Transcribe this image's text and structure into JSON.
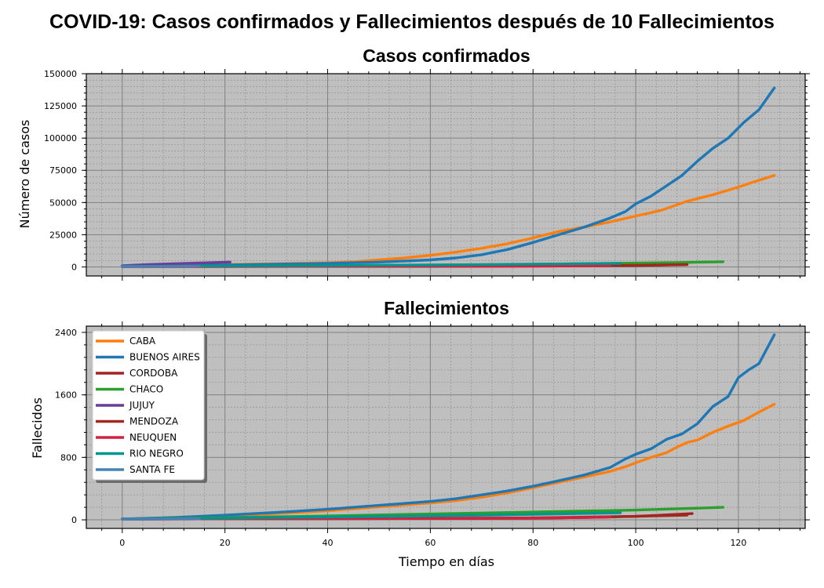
{
  "figure": {
    "title": "COVID-19: Casos confirmados y Fallecimientos después de 10 Fallecimientos"
  },
  "colors": {
    "plot_bg": "#bfbfbf",
    "major_grid": "#808080",
    "minor_grid": "#8c8c8c"
  },
  "chart_data": [
    {
      "type": "line",
      "title": "Casos confirmados",
      "xlabel": "",
      "ylabel": "Número de casos",
      "xlim": [
        -7,
        133
      ],
      "ylim": [
        -7000,
        150000
      ],
      "x_ticks": [
        0,
        20,
        40,
        60,
        80,
        100,
        120
      ],
      "x_tick_labels": [
        "",
        "",
        "",
        "",
        "",
        "",
        ""
      ],
      "y_ticks": [
        0,
        25000,
        50000,
        75000,
        100000,
        125000,
        150000
      ],
      "y_tick_labels": [
        "0",
        "25000",
        "50000",
        "75000",
        "100000",
        "125000",
        "150000"
      ],
      "grid": true,
      "series": [
        {
          "name": "CABA",
          "color": "#ff7f0e",
          "points": [
            [
              0,
              800
            ],
            [
              10,
              1200
            ],
            [
              20,
              1800
            ],
            [
              30,
              2500
            ],
            [
              40,
              3200
            ],
            [
              45,
              4000
            ],
            [
              50,
              5500
            ],
            [
              55,
              7000
            ],
            [
              60,
              9000
            ],
            [
              65,
              11500
            ],
            [
              70,
              14500
            ],
            [
              75,
              18000
            ],
            [
              80,
              22500
            ],
            [
              85,
              27500
            ],
            [
              90,
              31000
            ],
            [
              95,
              35000
            ],
            [
              100,
              39500
            ],
            [
              105,
              44000
            ],
            [
              110,
              51000
            ],
            [
              115,
              56000
            ],
            [
              120,
              62000
            ],
            [
              123,
              66000
            ],
            [
              127,
              71000
            ]
          ]
        },
        {
          "name": "BUENOS AIRES",
          "color": "#1f77b4",
          "points": [
            [
              0,
              800
            ],
            [
              10,
              1100
            ],
            [
              20,
              1500
            ],
            [
              30,
              2100
            ],
            [
              40,
              2800
            ],
            [
              50,
              3800
            ],
            [
              55,
              4600
            ],
            [
              60,
              5500
            ],
            [
              65,
              7000
            ],
            [
              70,
              9500
            ],
            [
              75,
              13500
            ],
            [
              80,
              19000
            ],
            [
              85,
              25000
            ],
            [
              90,
              31000
            ],
            [
              95,
              38000
            ],
            [
              98,
              43000
            ],
            [
              100,
              49000
            ],
            [
              103,
              55000
            ],
            [
              106,
              63000
            ],
            [
              109,
              71000
            ],
            [
              112,
              82000
            ],
            [
              115,
              92000
            ],
            [
              118,
              100000
            ],
            [
              121,
              112000
            ],
            [
              124,
              122000
            ],
            [
              127,
              139000
            ]
          ]
        },
        {
          "name": "CORDOBA",
          "color": "#a02424",
          "points": [
            [
              0,
              400
            ],
            [
              40,
              500
            ],
            [
              80,
              700
            ],
            [
              90,
              900
            ],
            [
              100,
              1200
            ],
            [
              105,
              1500
            ],
            [
              110,
              2200
            ]
          ]
        },
        {
          "name": "CHACO",
          "color": "#2ca02c",
          "points": [
            [
              0,
              500
            ],
            [
              20,
              700
            ],
            [
              40,
              1000
            ],
            [
              60,
              1400
            ],
            [
              80,
              2000
            ],
            [
              100,
              3000
            ],
            [
              110,
              3500
            ],
            [
              117,
              4000
            ]
          ]
        },
        {
          "name": "JUJUY",
          "color": "#6a3d9a",
          "points": [
            [
              0,
              1000
            ],
            [
              5,
              1800
            ],
            [
              10,
              2500
            ],
            [
              15,
              3100
            ],
            [
              21,
              3800
            ]
          ]
        },
        {
          "name": "MENDOZA",
          "color": "#a0281e",
          "points": [
            [
              0,
              300
            ],
            [
              40,
              400
            ],
            [
              80,
              700
            ],
            [
              100,
              1200
            ],
            [
              110,
              1800
            ]
          ]
        },
        {
          "name": "NEUQUEN",
          "color": "#d62040",
          "points": [
            [
              0,
              300
            ],
            [
              40,
              400
            ],
            [
              80,
              600
            ],
            [
              95,
              900
            ]
          ]
        },
        {
          "name": "RIO NEGRO",
          "color": "#00958f",
          "points": [
            [
              0,
              500
            ],
            [
              20,
              800
            ],
            [
              40,
              1100
            ],
            [
              60,
              1500
            ],
            [
              80,
              2200
            ],
            [
              97,
              2800
            ]
          ]
        },
        {
          "name": "SANTA FE",
          "color": "#4682b4",
          "points": [
            [
              0,
              300
            ],
            [
              8,
              500
            ],
            [
              15,
              700
            ]
          ]
        }
      ]
    },
    {
      "type": "line",
      "title": "Fallecimientos",
      "xlabel": "Tiempo en días",
      "ylabel": "Fallecidos",
      "xlim": [
        -7,
        133
      ],
      "ylim": [
        -110,
        2480
      ],
      "x_ticks": [
        0,
        20,
        40,
        60,
        80,
        100,
        120
      ],
      "x_tick_labels": [
        "0",
        "20",
        "40",
        "60",
        "80",
        "100",
        "120"
      ],
      "y_ticks": [
        0,
        800,
        1600,
        2400
      ],
      "y_tick_labels": [
        "0",
        "800",
        "1600",
        "2400"
      ],
      "grid": true,
      "legend": "upper-left",
      "series": [
        {
          "name": "CABA",
          "color": "#ff7f0e",
          "points": [
            [
              0,
              10
            ],
            [
              10,
              25
            ],
            [
              20,
              50
            ],
            [
              30,
              80
            ],
            [
              40,
              115
            ],
            [
              45,
              140
            ],
            [
              50,
              165
            ],
            [
              55,
              190
            ],
            [
              60,
              215
            ],
            [
              65,
              245
            ],
            [
              70,
              290
            ],
            [
              75,
              345
            ],
            [
              80,
              410
            ],
            [
              85,
              480
            ],
            [
              90,
              550
            ],
            [
              95,
              620
            ],
            [
              98,
              680
            ],
            [
              100,
              730
            ],
            [
              103,
              800
            ],
            [
              106,
              860
            ],
            [
              108,
              930
            ],
            [
              110,
              990
            ],
            [
              112,
              1020
            ],
            [
              115,
              1120
            ],
            [
              118,
              1200
            ],
            [
              121,
              1270
            ],
            [
              124,
              1380
            ],
            [
              127,
              1480
            ]
          ]
        },
        {
          "name": "BUENOS AIRES",
          "color": "#1f77b4",
          "points": [
            [
              0,
              10
            ],
            [
              10,
              30
            ],
            [
              20,
              60
            ],
            [
              30,
              95
            ],
            [
              40,
              135
            ],
            [
              45,
              160
            ],
            [
              50,
              185
            ],
            [
              55,
              210
            ],
            [
              60,
              235
            ],
            [
              65,
              270
            ],
            [
              70,
              320
            ],
            [
              75,
              370
            ],
            [
              80,
              430
            ],
            [
              85,
              500
            ],
            [
              90,
              575
            ],
            [
              95,
              670
            ],
            [
              98,
              780
            ],
            [
              100,
              840
            ],
            [
              103,
              910
            ],
            [
              106,
              1030
            ],
            [
              109,
              1100
            ],
            [
              112,
              1230
            ],
            [
              115,
              1450
            ],
            [
              118,
              1580
            ],
            [
              120,
              1820
            ],
            [
              122,
              1920
            ],
            [
              124,
              2000
            ],
            [
              127,
              2370
            ]
          ]
        },
        {
          "name": "CORDOBA",
          "color": "#a02424",
          "points": [
            [
              0,
              10
            ],
            [
              40,
              14
            ],
            [
              80,
              22
            ],
            [
              90,
              30
            ],
            [
              100,
              45
            ],
            [
              105,
              60
            ],
            [
              111,
              80
            ]
          ]
        },
        {
          "name": "CHACO",
          "color": "#2ca02c",
          "points": [
            [
              0,
              10
            ],
            [
              20,
              30
            ],
            [
              40,
              50
            ],
            [
              60,
              75
            ],
            [
              80,
              100
            ],
            [
              100,
              125
            ],
            [
              110,
              145
            ],
            [
              117,
              160
            ]
          ]
        },
        {
          "name": "JUJUY",
          "color": "#6a3d9a",
          "points": [
            [
              0,
              10
            ],
            [
              10,
              12
            ],
            [
              20,
              15
            ]
          ]
        },
        {
          "name": "MENDOZA",
          "color": "#a0281e",
          "points": [
            [
              0,
              10
            ],
            [
              40,
              14
            ],
            [
              80,
              25
            ],
            [
              100,
              45
            ],
            [
              110,
              60
            ]
          ]
        },
        {
          "name": "NEUQUEN",
          "color": "#d62040",
          "points": [
            [
              0,
              10
            ],
            [
              40,
              14
            ],
            [
              80,
              22
            ],
            [
              95,
              35
            ]
          ]
        },
        {
          "name": "RIO NEGRO",
          "color": "#00958f",
          "points": [
            [
              0,
              10
            ],
            [
              20,
              22
            ],
            [
              40,
              35
            ],
            [
              60,
              50
            ],
            [
              80,
              70
            ],
            [
              97,
              90
            ]
          ]
        },
        {
          "name": "SANTA FE",
          "color": "#4682b4",
          "points": [
            [
              0,
              10
            ],
            [
              8,
              12
            ],
            [
              15,
              14
            ]
          ]
        }
      ]
    }
  ]
}
